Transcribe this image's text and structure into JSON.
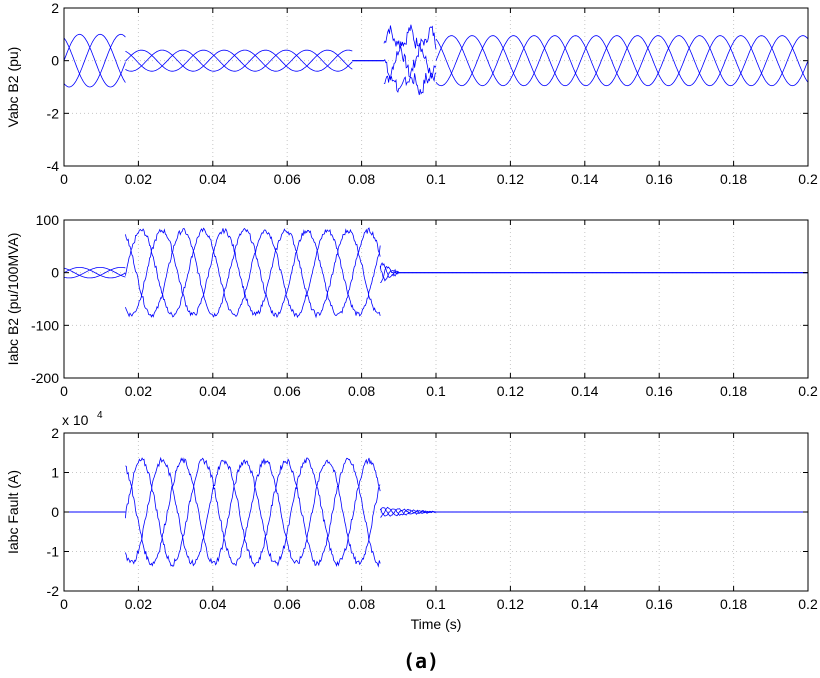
{
  "caption": "(a)",
  "chart_data": [
    {
      "type": "line",
      "ylabel": "Vabc B2 (pu)",
      "xlabel": "",
      "xlim": [
        0,
        0.2
      ],
      "ylim": [
        -4,
        2
      ],
      "xticks": [
        0,
        0.02,
        0.04,
        0.06,
        0.08,
        0.1,
        0.12,
        0.14,
        0.16,
        0.18,
        0.2
      ],
      "xtick_labels": [
        "0",
        "0.02",
        "0.04",
        "0.06",
        "0.08",
        "0.1",
        "0.12",
        "0.14",
        "0.16",
        "0.18",
        "0.2"
      ],
      "yticks": [
        -4,
        -2,
        0,
        2
      ],
      "ytick_labels": [
        "-4",
        "-2",
        "0",
        "2"
      ],
      "grid": true,
      "color": "#0000ff",
      "segments": [
        {
          "x": [
            0,
            0.0165
          ],
          "amplitude": 1.0,
          "shape": "sine"
        },
        {
          "x": [
            0.0165,
            0.0775
          ],
          "amplitude": 0.4,
          "shape": "sine"
        },
        {
          "x": [
            0.0775,
            0.086
          ],
          "amplitude": 0.0,
          "shape": "flat"
        },
        {
          "x": [
            0.086,
            0.1
          ],
          "amplitude": 1.2,
          "shape": "transient"
        },
        {
          "x": [
            0.1,
            0.2
          ],
          "amplitude": 0.95,
          "shape": "sine"
        }
      ]
    },
    {
      "type": "line",
      "ylabel": "Iabc B2 (pu/100MVA)",
      "xlabel": "",
      "xlim": [
        0,
        0.2
      ],
      "ylim": [
        -200,
        100
      ],
      "xticks": [
        0,
        0.02,
        0.04,
        0.06,
        0.08,
        0.1,
        0.12,
        0.14,
        0.16,
        0.18,
        0.2
      ],
      "xtick_labels": [
        "0",
        "0.02",
        "0.04",
        "0.06",
        "0.08",
        "0.1",
        "0.12",
        "0.14",
        "0.16",
        "0.18",
        "0.2"
      ],
      "yticks": [
        -200,
        -100,
        0,
        100
      ],
      "ytick_labels": [
        "-200",
        "-100",
        "0",
        "100"
      ],
      "grid": true,
      "color": "#0000ff",
      "segments": [
        {
          "x": [
            0,
            0.0165
          ],
          "amplitude": 10,
          "shape": "sine"
        },
        {
          "x": [
            0.0165,
            0.085
          ],
          "amplitude": 80,
          "shape": "fault"
        },
        {
          "x": [
            0.085,
            0.09
          ],
          "amplitude": 20,
          "shape": "decay"
        },
        {
          "x": [
            0.09,
            0.2
          ],
          "amplitude": 0,
          "shape": "flat"
        }
      ]
    },
    {
      "type": "line",
      "ylabel": "Iabc Fault (A)",
      "xlabel": "Time (s)",
      "scale_note": "x 10",
      "scale_exp": "4",
      "xlim": [
        0,
        0.2
      ],
      "ylim": [
        -2,
        2
      ],
      "xticks": [
        0,
        0.02,
        0.04,
        0.06,
        0.08,
        0.1,
        0.12,
        0.14,
        0.16,
        0.18,
        0.2
      ],
      "xtick_labels": [
        "0",
        "0.02",
        "0.04",
        "0.06",
        "0.08",
        "0.1",
        "0.12",
        "0.14",
        "0.16",
        "0.18",
        "0.2"
      ],
      "yticks": [
        -2,
        -1,
        0,
        1,
        2
      ],
      "ytick_labels": [
        "-2",
        "-1",
        "0",
        "1",
        "2"
      ],
      "grid": true,
      "color": "#0000ff",
      "segments": [
        {
          "x": [
            0,
            0.0165
          ],
          "amplitude": 0,
          "shape": "flat"
        },
        {
          "x": [
            0.0165,
            0.085
          ],
          "amplitude": 1.3,
          "shape": "fault"
        },
        {
          "x": [
            0.085,
            0.1
          ],
          "amplitude": 0.12,
          "shape": "decay"
        },
        {
          "x": [
            0.1,
            0.2
          ],
          "amplitude": 0,
          "shape": "flat"
        }
      ]
    }
  ]
}
